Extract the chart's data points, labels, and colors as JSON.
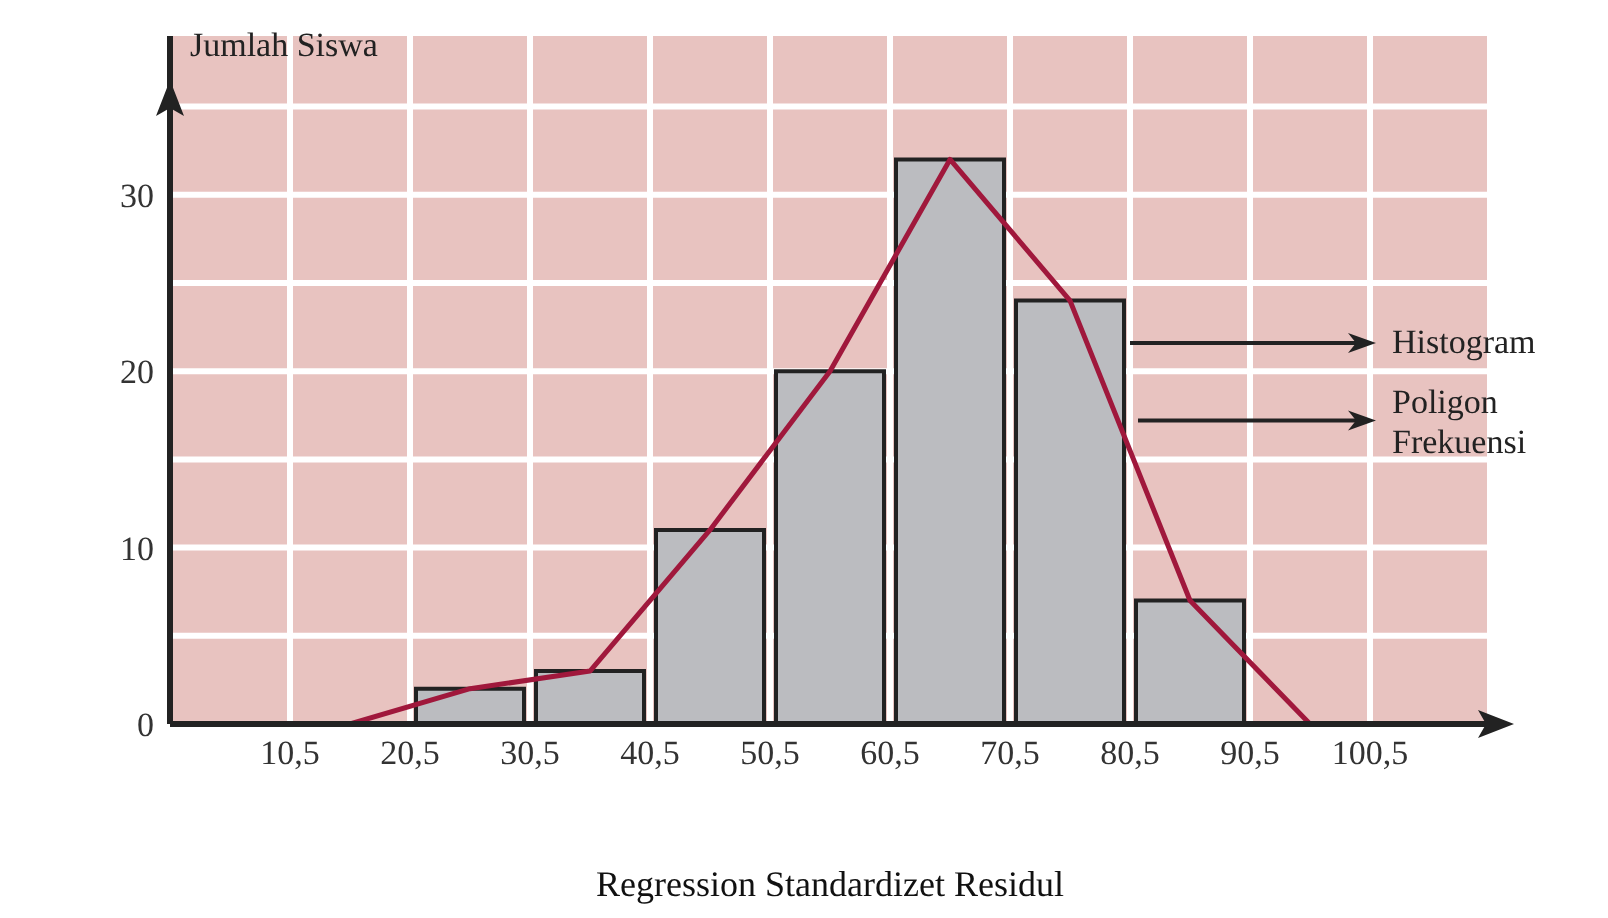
{
  "chart_data": {
    "type": "histogram",
    "xlabel": "Regression Standardizet Residul",
    "ylabel": "Jumlah Siswa",
    "bins": [
      20.5,
      30.5,
      40.5,
      50.5,
      60.5,
      70.5,
      80.5,
      90.5
    ],
    "series": [
      {
        "name": "Histogram",
        "color": "#bbbcc0",
        "values": [
          2,
          3,
          11,
          20,
          32,
          24,
          7
        ]
      },
      {
        "name": "Poligon Frekuensi",
        "type": "line",
        "color": "#a0183c",
        "x": [
          15.5,
          25.5,
          35.5,
          45.5,
          55.5,
          65.5,
          75.5,
          85.5,
          95.5
        ],
        "values": [
          0,
          2,
          3,
          11,
          20,
          32,
          24,
          7,
          0
        ]
      }
    ],
    "xlim": [
      0.5,
      110.5
    ],
    "xticks": [
      {
        "value": 0.5,
        "label": null
      },
      {
        "value": 10.5,
        "label": "10,5"
      },
      {
        "value": 20.5,
        "label": "20,5"
      },
      {
        "value": 30.5,
        "label": "30,5"
      },
      {
        "value": 40.5,
        "label": "40,5"
      },
      {
        "value": 50.5,
        "label": "50,5"
      },
      {
        "value": 60.5,
        "label": "60,5"
      },
      {
        "value": 70.5,
        "label": "70,5"
      },
      {
        "value": 80.5,
        "label": "80,5"
      },
      {
        "value": 90.5,
        "label": "90,5"
      },
      {
        "value": 100.5,
        "label": "100,5"
      },
      {
        "value": 110.5,
        "label": null
      }
    ],
    "ylim": [
      0,
      39
    ],
    "yticks": [
      0,
      {
        "value": 5,
        "label": null
      },
      10,
      {
        "value": 15,
        "label": null
      },
      20,
      {
        "value": 25,
        "label": null
      },
      30,
      {
        "value": 35,
        "label": null
      }
    ],
    "grid": true,
    "marker": "none",
    "line_style": "solid"
  }
}
